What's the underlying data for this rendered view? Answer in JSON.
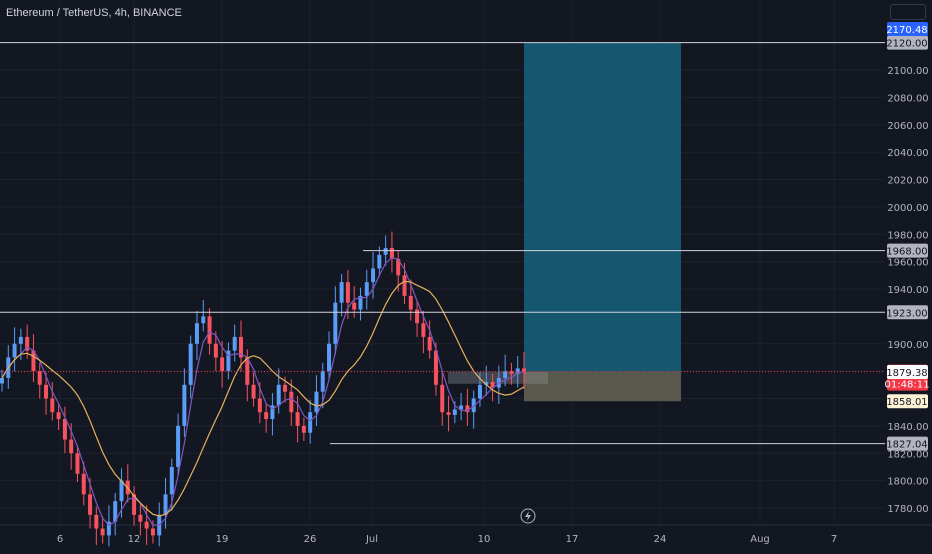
{
  "chart_data": {
    "type": "candlestick",
    "title": "Ethereum / TetherUS, 4h, BINANCE",
    "price_axis": {
      "ticks": [
        "2100.00",
        "2080.00",
        "2060.00",
        "2040.00",
        "2020.00",
        "2000.00",
        "1980.00",
        "1960.00",
        "1940.00",
        "1900.00",
        "1880.00",
        "1860.00",
        "1840.00",
        "1820.00",
        "1800.00",
        "1780.00"
      ],
      "range": [
        1770,
        2180
      ]
    },
    "time_axis": {
      "ticks": [
        "6",
        "12",
        "19",
        "26",
        "Jul",
        "10",
        "17",
        "24",
        "Aug",
        "7"
      ]
    },
    "horizontal_levels": [
      {
        "label": "2120.00",
        "value": 2120.0
      },
      {
        "label": "1968.00",
        "value": 1968.0
      },
      {
        "label": "1923.00",
        "value": 1923.0
      },
      {
        "label": "1827.04",
        "value": 1827.04
      }
    ],
    "price_badges": [
      {
        "label": "2170.48",
        "value": 2170.48,
        "color": "#2962ff"
      },
      {
        "label": "1879.65",
        "sublabel": "01:48:11",
        "value": 1879.65,
        "color": "#f23645"
      },
      {
        "label": "1879.38",
        "value": 1879.38,
        "color": "#ffffff"
      },
      {
        "label": "1858.01",
        "value": 1858.01,
        "color": "#fff3d6"
      }
    ],
    "long_position": {
      "entry": 1879.65,
      "target": 2120.0,
      "stop": 1858.01,
      "profit_color": "#165a73",
      "loss_color": "#5d5c4f"
    },
    "colors": {
      "up": "#5b9cf6",
      "down": "#f7525f",
      "ma_fast": "#7e57c2",
      "ma_slow": "#e5b25b",
      "background": "#131722"
    }
  }
}
